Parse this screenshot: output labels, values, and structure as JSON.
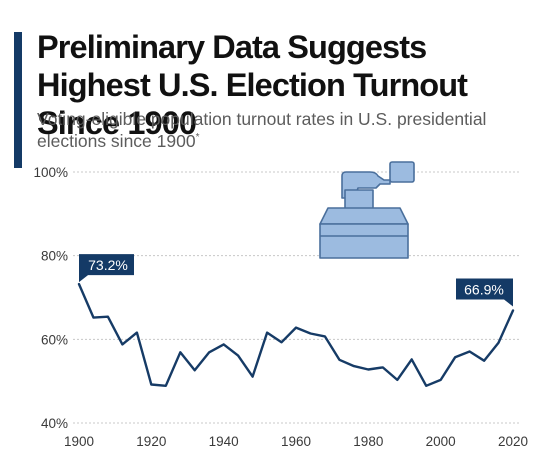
{
  "header": {
    "title": "Preliminary Data Suggests Highest U.S. Election Turnout Since 1900",
    "subtitle": "Voting-eligible population turnout rates in U.S. presidential elections since 1900",
    "footnote_mark": "*"
  },
  "colors": {
    "accent": "#143a66",
    "line": "#163b66",
    "grid": "#c8c8c8",
    "icon_fill": "#9cbbe0",
    "icon_stroke": "#4a6f9c"
  },
  "icon": {
    "name": "ballot-box-icon"
  },
  "chart_data": {
    "type": "line",
    "title": "Preliminary Data Suggests Highest U.S. Election Turnout Since 1900",
    "subtitle": "Voting-eligible population turnout rates in U.S. presidential elections since 1900",
    "xlabel": "",
    "ylabel": "",
    "x": [
      1900,
      1904,
      1908,
      1912,
      1916,
      1920,
      1924,
      1928,
      1932,
      1936,
      1940,
      1944,
      1948,
      1952,
      1956,
      1960,
      1964,
      1968,
      1972,
      1976,
      1980,
      1984,
      1988,
      1992,
      1996,
      2000,
      2004,
      2008,
      2012,
      2016,
      2020
    ],
    "series": [
      {
        "values": [
          73.2,
          65.2,
          65.4,
          58.8,
          61.6,
          49.2,
          48.9,
          56.9,
          52.6,
          56.9,
          58.8,
          56.1,
          51.1,
          61.6,
          59.3,
          62.8,
          61.4,
          60.7,
          55.1,
          53.6,
          52.8,
          53.3,
          50.3,
          55.2,
          48.9,
          50.3,
          55.7,
          57.1,
          54.9,
          59.2,
          66.9
        ]
      }
    ],
    "xlim": [
      1900,
      2020
    ],
    "ylim": [
      40,
      100
    ],
    "xticks": [
      1900,
      1920,
      1940,
      1960,
      1980,
      2000,
      2020
    ],
    "yticks": [
      40,
      60,
      80,
      100
    ],
    "ytick_labels": [
      "40%",
      "60%",
      "80%",
      "100%"
    ],
    "grid": "horizontal-dashed",
    "annotations": [
      {
        "x": 1900,
        "y": 73.2,
        "text": "73.2%"
      },
      {
        "x": 2020,
        "y": 66.9,
        "text": "66.9%"
      }
    ]
  }
}
